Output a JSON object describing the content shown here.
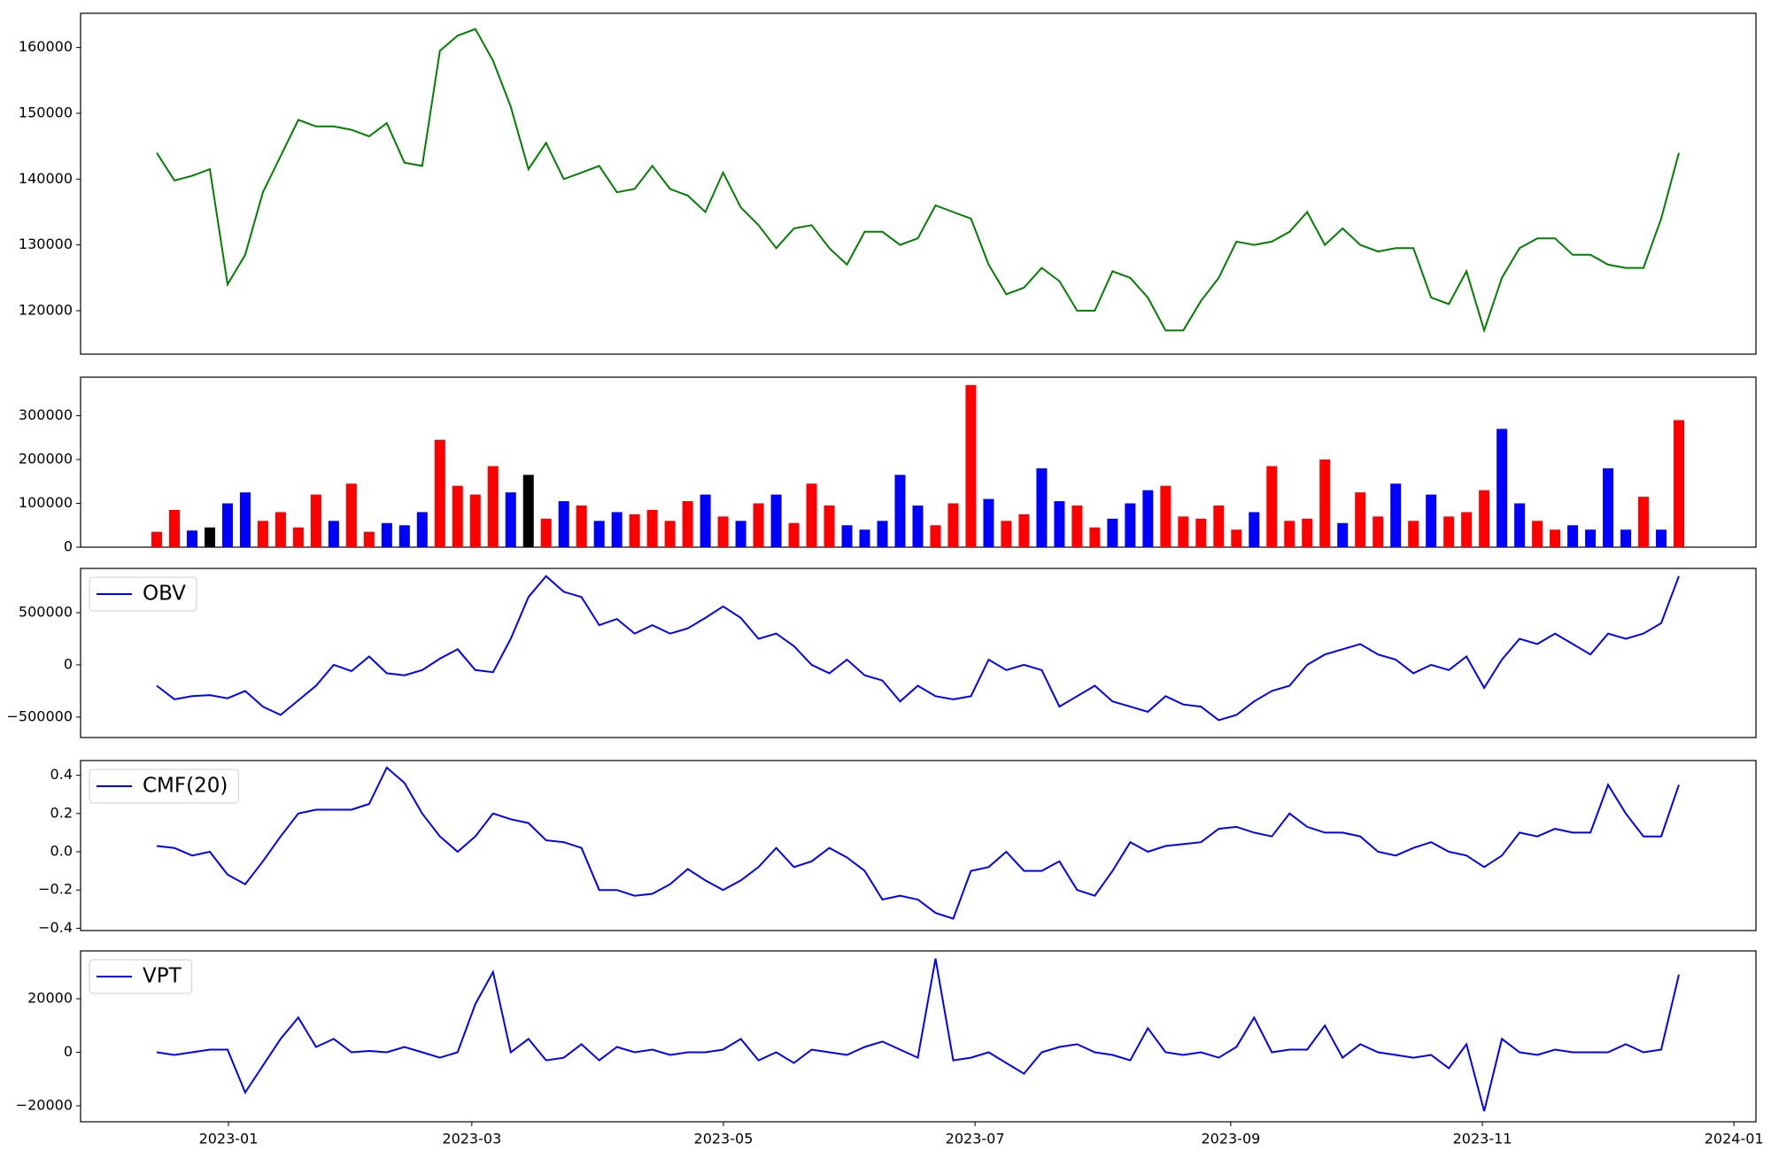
{
  "chart_data": [
    {
      "type": "line",
      "color": "#008000",
      "values": [
        144000,
        139800,
        140500,
        141500,
        124000,
        128500,
        138000,
        143500,
        149000,
        148000,
        148000,
        147500,
        146500,
        148500,
        142500,
        142000,
        159500,
        161800,
        162800,
        158000,
        151000,
        141500,
        145500,
        140000,
        141000,
        142000,
        138000,
        138500,
        142000,
        138500,
        137500,
        135000,
        141000,
        135700,
        133000,
        129500,
        132500,
        133000,
        129500,
        127000,
        132000,
        132000,
        130000,
        131000,
        136000,
        135000,
        134000,
        127000,
        122500,
        123500,
        126500,
        124500,
        120000,
        120000,
        126000,
        125000,
        122000,
        117000,
        117000,
        121500,
        125000,
        130500,
        130000,
        130500,
        132000,
        135000,
        130000,
        132500,
        130000,
        129000,
        129500,
        129500,
        122000,
        121000,
        126000,
        117000,
        125000,
        129500,
        131000,
        131000,
        128500,
        128500,
        127000,
        126500,
        126500,
        134000,
        144000
      ],
      "ylim": [
        113400,
        165200
      ],
      "yticks": [
        120000,
        130000,
        140000,
        150000,
        160000
      ]
    },
    {
      "type": "bar",
      "values": [
        35000,
        85000,
        38000,
        45000,
        100000,
        125000,
        60000,
        80000,
        45000,
        120000,
        60000,
        145000,
        35000,
        55000,
        50000,
        80000,
        245000,
        140000,
        120000,
        185000,
        125000,
        165000,
        65000,
        105000,
        95000,
        60000,
        80000,
        75000,
        85000,
        60000,
        105000,
        120000,
        70000,
        60000,
        100000,
        120000,
        55000,
        145000,
        95000,
        50000,
        40000,
        60000,
        165000,
        95000,
        50000,
        100000,
        370000,
        110000,
        60000,
        75000,
        180000,
        105000,
        95000,
        45000,
        65000,
        100000,
        130000,
        140000,
        70000,
        65000,
        95000,
        40000,
        80000,
        185000,
        60000,
        65000,
        200000,
        55000,
        125000,
        70000,
        145000,
        60000,
        120000,
        70000,
        80000,
        130000,
        270000,
        100000,
        60000,
        40000,
        50000,
        40000,
        180000,
        40000,
        115000,
        40000,
        290000
      ],
      "colors": [
        "red",
        "red",
        "blue",
        "black",
        "blue",
        "blue",
        "red",
        "red",
        "red",
        "red",
        "blue",
        "red",
        "red",
        "blue",
        "blue",
        "blue",
        "red",
        "red",
        "red",
        "red",
        "blue",
        "black",
        "red",
        "blue",
        "red",
        "blue",
        "blue",
        "red",
        "red",
        "red",
        "red",
        "blue",
        "red",
        "blue",
        "red",
        "blue",
        "red",
        "red",
        "red",
        "blue",
        "blue",
        "blue",
        "blue",
        "blue",
        "red",
        "red",
        "red",
        "blue",
        "red",
        "red",
        "blue",
        "blue",
        "red",
        "red",
        "blue",
        "blue",
        "blue",
        "red",
        "red",
        "red",
        "red",
        "red",
        "blue",
        "red",
        "red",
        "red",
        "red",
        "blue",
        "red",
        "red",
        "blue",
        "red",
        "blue",
        "red",
        "red",
        "red",
        "blue",
        "blue",
        "red",
        "red",
        "blue",
        "blue",
        "blue",
        "blue",
        "red",
        "blue",
        "red"
      ],
      "ylim": [
        0,
        388000
      ],
      "yticks": [
        0,
        100000,
        200000,
        300000
      ]
    },
    {
      "type": "line",
      "legend": "upper left",
      "series": [
        {
          "name": "OBV",
          "color": "#0000ff",
          "values": [
            -200000,
            -330000,
            -300000,
            -290000,
            -320000,
            -250000,
            -400000,
            -480000,
            -340000,
            -200000,
            0,
            -60000,
            80000,
            -80000,
            -100000,
            -50000,
            60000,
            150000,
            -50000,
            -70000,
            250000,
            650000,
            850000,
            700000,
            650000,
            380000,
            440000,
            300000,
            380000,
            300000,
            350000,
            450000,
            560000,
            450000,
            250000,
            300000,
            180000,
            0,
            -80000,
            50000,
            -100000,
            -150000,
            -350000,
            -200000,
            -300000,
            -330000,
            -300000,
            50000,
            -50000,
            0,
            -50000,
            -400000,
            -300000,
            -200000,
            -350000,
            -400000,
            -450000,
            -300000,
            -380000,
            -400000,
            -530000,
            -480000,
            -350000,
            -250000,
            -200000,
            0,
            100000,
            150000,
            200000,
            100000,
            50000,
            -80000,
            0,
            -50000,
            80000,
            -220000,
            50000,
            250000,
            200000,
            300000,
            200000,
            100000,
            300000,
            250000,
            300000,
            400000,
            850000
          ]
        }
      ],
      "ylim": [
        -696000,
        924000
      ],
      "yticks": [
        {
          "value": -500000,
          "label": "−500000"
        },
        0,
        500000
      ]
    },
    {
      "type": "line",
      "legend": "upper left",
      "series": [
        {
          "name": "CMF(20)",
          "color": "#0000ff",
          "values": [
            0.03,
            0.02,
            -0.02,
            0.0,
            -0.12,
            -0.17,
            -0.05,
            0.08,
            0.2,
            0.22,
            0.22,
            0.22,
            0.25,
            0.44,
            0.36,
            0.2,
            0.08,
            0.0,
            0.08,
            0.2,
            0.17,
            0.15,
            0.06,
            0.05,
            0.02,
            -0.2,
            -0.2,
            -0.23,
            -0.22,
            -0.17,
            -0.09,
            -0.15,
            -0.2,
            -0.15,
            -0.08,
            0.02,
            -0.08,
            -0.05,
            0.02,
            -0.03,
            -0.1,
            -0.25,
            -0.23,
            -0.25,
            -0.32,
            -0.35,
            -0.1,
            -0.08,
            0.0,
            -0.1,
            -0.1,
            -0.05,
            -0.2,
            -0.23,
            -0.1,
            0.05,
            0.0,
            0.03,
            0.04,
            0.05,
            0.12,
            0.13,
            0.1,
            0.08,
            0.2,
            0.13,
            0.1,
            0.1,
            0.08,
            0.0,
            -0.02,
            0.02,
            0.05,
            0.0,
            -0.02,
            -0.08,
            -0.02,
            0.1,
            0.08,
            0.12,
            0.1,
            0.1,
            0.35,
            0.2,
            0.08,
            0.08,
            0.35
          ]
        }
      ],
      "ylim": [
        -0.412,
        0.477
      ],
      "yticks": [
        {
          "value": -0.4,
          "label": "−0.4"
        },
        {
          "value": -0.2,
          "label": "−0.2"
        },
        {
          "value": 0,
          "label": "0.0"
        },
        0.2,
        0.4
      ]
    },
    {
      "type": "line",
      "legend": "upper left",
      "series": [
        {
          "name": "VPT",
          "color": "#0000ff",
          "values": [
            0,
            -1000,
            0,
            1000,
            1000,
            -15000,
            -5000,
            5000,
            13000,
            2000,
            5000,
            0,
            500,
            0,
            2000,
            0,
            -2000,
            0,
            18000,
            30000,
            0,
            5000,
            -3000,
            -2000,
            3000,
            -3000,
            2000,
            0,
            1000,
            -1000,
            0,
            0,
            1000,
            5000,
            -3000,
            0,
            -4000,
            1000,
            0,
            -1000,
            2000,
            4000,
            1000,
            -2000,
            35000,
            -3000,
            -2000,
            0,
            -4000,
            -8000,
            0,
            2000,
            3000,
            0,
            -1000,
            -3000,
            9000,
            0,
            -1000,
            0,
            -2000,
            2000,
            13000,
            0,
            1000,
            1000,
            10000,
            -2000,
            3000,
            0,
            -1000,
            -2000,
            -1000,
            -6000,
            3000,
            -22000,
            5000,
            0,
            -1000,
            1000,
            0,
            0,
            0,
            3000,
            0,
            1000,
            29000
          ]
        }
      ],
      "ylim": [
        -25960,
        37870
      ],
      "yticks": [
        {
          "value": -20000,
          "label": "−20000"
        },
        0,
        20000
      ],
      "xticks": [
        "2023-01",
        "2023-03",
        "2023-05",
        "2023-07",
        "2023-09",
        "2023-11",
        "2024-01"
      ]
    }
  ]
}
